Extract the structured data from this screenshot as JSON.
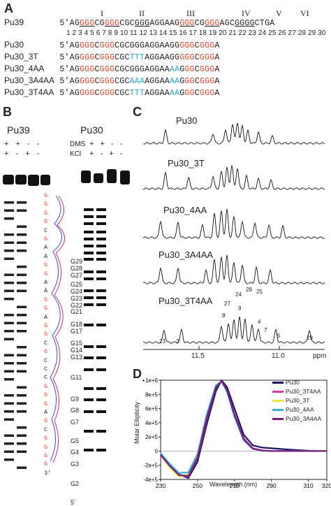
{
  "panels": {
    "a": "A",
    "b": "B",
    "c": "C",
    "d": "D"
  },
  "panelA": {
    "pu39_name": "Pu39",
    "pu39_prefix": "5'",
    "roman": [
      "I",
      "II",
      "III",
      "IV",
      "V",
      "VI"
    ],
    "positions": "1 2  3 4 5 6 7 8 9 10 11 12 13 14 15 16 17 18 19 20 21 22 23 24 25 26 27 28 29 30",
    "rows": [
      {
        "name": "Pu30"
      },
      {
        "name": "Pu30_3T"
      },
      {
        "name": "Pu30_4AA"
      },
      {
        "name": "Pu30_3A4AA"
      },
      {
        "name": "Pu30_3T4AA"
      }
    ],
    "prime": "5'"
  },
  "panelB": {
    "pu39_title": "Pu39",
    "pu30_title": "Pu30",
    "dms_label": "DMS",
    "kcl_label": "KCl",
    "signs_row1": [
      "+",
      "+",
      "-",
      "-"
    ],
    "signs_row2": [
      "+",
      "-",
      "+",
      "-"
    ],
    "g_labels": [
      "G29",
      "G28",
      "G27",
      "G25",
      "G24",
      "G23",
      "G22",
      "G21",
      "G18",
      "G17",
      "G15",
      "G14",
      "G13",
      "G11",
      "G9",
      "G8",
      "G7",
      "G5",
      "G4",
      "G3",
      "G2",
      "5'"
    ],
    "sequence_column": [
      "G",
      "G",
      "G",
      "G",
      "C",
      "G",
      "A",
      "A",
      "G",
      "G",
      "A",
      "A",
      "G",
      "G",
      "A",
      "G",
      "G",
      "C",
      "G",
      "C",
      "C",
      "C",
      "G",
      "G",
      "G",
      "A",
      "G",
      "C",
      "G",
      "G",
      "G",
      "G",
      "3'"
    ]
  },
  "panelC": {
    "labels": [
      "Pu30",
      "Pu30_3T",
      "Pu30_4AA",
      "Pu30_3A4AA",
      "Pu30_3T4AA"
    ],
    "peak_labels": [
      "23",
      "3",
      "8",
      "27",
      "9",
      "24",
      "28",
      "25",
      "4",
      "7",
      "5",
      "29"
    ],
    "axis_ticks": [
      "11.5",
      "11.0"
    ],
    "axis_unit": "ppm"
  },
  "chart_data": {
    "type": "line",
    "ylabel": "Molar Ellipticity",
    "xlabel": "Wavelength (nm)",
    "xlim": [
      230,
      320
    ],
    "ylim": [
      -400000,
      1000000
    ],
    "x_ticks": [
      "230",
      "250",
      "270",
      "290",
      "310",
      "320"
    ],
    "y_ticks": [
      "+1e+6",
      "8e+5",
      "6e+5",
      "4e+5",
      "2e+5",
      "0",
      "-2e+5",
      "-4e+5"
    ],
    "x": [
      230,
      235,
      240,
      245,
      250,
      255,
      260,
      263,
      266,
      270,
      275,
      280,
      285,
      290,
      300,
      310,
      320
    ],
    "series": [
      {
        "name": "Pu30",
        "color": "#1b1464",
        "values": [
          -40000,
          -200000,
          -330000,
          -380000,
          -150000,
          380000,
          850000,
          1000000,
          900000,
          600000,
          230000,
          80000,
          50000,
          40000,
          20000,
          5000,
          0
        ]
      },
      {
        "name": "Pu30_3T4AA",
        "color": "#d63aa0",
        "values": [
          -60000,
          -220000,
          -340000,
          -360000,
          -100000,
          450000,
          900000,
          990000,
          860000,
          520000,
          180000,
          40000,
          10000,
          0,
          0,
          0,
          0
        ]
      },
      {
        "name": "Pu30_3T",
        "color": "#f0e23a",
        "values": [
          -50000,
          -230000,
          -360000,
          -330000,
          -60000,
          500000,
          920000,
          990000,
          850000,
          500000,
          160000,
          30000,
          5000,
          0,
          0,
          0,
          0
        ]
      },
      {
        "name": "Pu30_4AA",
        "color": "#3bb0d6",
        "values": [
          -30000,
          -180000,
          -310000,
          -300000,
          -40000,
          520000,
          930000,
          980000,
          830000,
          480000,
          150000,
          30000,
          5000,
          0,
          0,
          0,
          0
        ]
      },
      {
        "name": "Pu30_3A4AA",
        "color": "#7a1c7a",
        "values": [
          -50000,
          -210000,
          -340000,
          -350000,
          -90000,
          470000,
          900000,
          990000,
          860000,
          510000,
          170000,
          35000,
          8000,
          0,
          0,
          0,
          0
        ]
      }
    ]
  }
}
